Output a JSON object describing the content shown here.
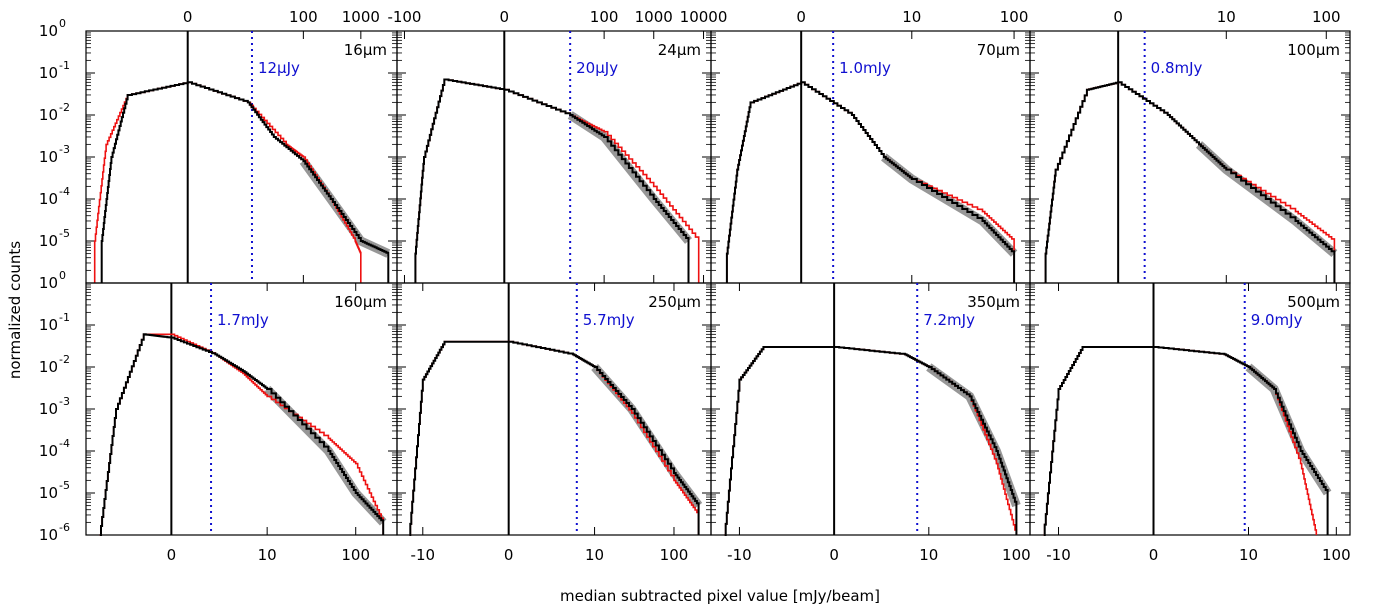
{
  "figure": {
    "xlabel": "median subtracted pixel value [mJy/beam]",
    "ylabel": "normalized counts",
    "colors": {
      "black_hist": "#000000",
      "red_hist": "#ee1111",
      "gray_hist": "#8c8c8c",
      "sensitivity_line": "#1010d0",
      "frame": "#000000"
    }
  },
  "y_tick_labels": {
    "top_row": [
      "10",
      "10",
      "10",
      "10",
      "10",
      "10"
    ],
    "top_row_exponents": [
      "0",
      "-1",
      "-2",
      "-3",
      "-4",
      "-5"
    ],
    "bottom_row": [
      "10",
      "10",
      "10",
      "10",
      "10",
      "10",
      "10"
    ],
    "bottom_row_exponents": [
      "0",
      "-1",
      "-2",
      "-3",
      "-4",
      "-5",
      "-6"
    ]
  },
  "x_tick_labels": {
    "top_row": [
      [
        "0",
        "100",
        "1000"
      ],
      [
        "-100",
        "0",
        "100",
        "1000",
        "10000"
      ],
      [
        "0",
        "10",
        "100"
      ],
      [
        "0",
        "10",
        "100"
      ]
    ],
    "bottom_row": [
      [
        "0",
        "10",
        "100"
      ],
      [
        "-10",
        "0",
        "10",
        "100"
      ],
      [
        "-10",
        "0",
        "10",
        "100"
      ],
      [
        "-10",
        "0",
        "10",
        "100"
      ]
    ]
  },
  "chart_data": [
    {
      "type": "line",
      "band": "16μm",
      "band_label": "16μm",
      "sensitivity_label": "12μJy",
      "row": 0,
      "col": 0,
      "xscale": "symlog",
      "yscale": "log",
      "ylim": [
        1e-06,
        1
      ],
      "x_ticks": [
        0,
        100,
        1000
      ],
      "sensitivity_x": 12,
      "series": [
        {
          "name": "",
          "color": "black",
          "x": [
            -30,
            -20,
            -10,
            0,
            10,
            30,
            100,
            300,
            1000,
            3000
          ],
          "y": [
            1e-05,
            0.001,
            0.03,
            0.06,
            0.02,
            0.003,
            0.0008,
            0.0001,
            1e-05,
            5e-06
          ]
        },
        {
          "name": "",
          "color": "red",
          "x": [
            -40,
            -25,
            -10,
            0,
            10,
            50,
            100,
            300,
            800,
            1000
          ],
          "y": [
            1e-05,
            0.002,
            0.03,
            0.06,
            0.02,
            0.002,
            0.001,
            0.0001,
            1e-05,
            5e-06
          ]
        }
      ]
    },
    {
      "type": "line",
      "band": "24μm",
      "band_label": "24μm",
      "sensitivity_label": "20μJy",
      "row": 0,
      "col": 1,
      "xscale": "symlog",
      "yscale": "log",
      "ylim": [
        1e-06,
        1
      ],
      "x_ticks": [
        -100,
        0,
        100,
        1000,
        10000
      ],
      "sensitivity_x": 20,
      "series": [
        {
          "name": "",
          "color": "black",
          "x": [
            -60,
            -40,
            -15,
            0,
            20,
            100,
            1000,
            5000
          ],
          "y": [
            5e-06,
            0.001,
            0.07,
            0.04,
            0.01,
            0.003,
            0.0001,
            1e-05
          ]
        },
        {
          "name": "",
          "color": "red",
          "x": [
            -60,
            -40,
            -15,
            0,
            20,
            100,
            1000,
            8000
          ],
          "y": [
            5e-06,
            0.001,
            0.07,
            0.04,
            0.01,
            0.004,
            0.0002,
            1e-05
          ]
        }
      ]
    },
    {
      "type": "line",
      "band": "70μm",
      "band_label": "70μm",
      "sensitivity_label": "1.0mJy",
      "row": 0,
      "col": 2,
      "xscale": "symlog",
      "yscale": "log",
      "ylim": [
        1e-06,
        1
      ],
      "x_ticks": [
        0,
        10,
        100
      ],
      "sensitivity_x": 1.0,
      "series": [
        {
          "name": "",
          "color": "black",
          "x": [
            -4,
            -3,
            -2,
            0,
            2,
            5,
            10,
            50,
            100
          ],
          "y": [
            5e-06,
            0.0005,
            0.02,
            0.06,
            0.01,
            0.001,
            0.0003,
            3e-05,
            5e-06
          ]
        },
        {
          "name": "",
          "color": "red",
          "x": [
            -4,
            -3,
            -2,
            0,
            2,
            5,
            10,
            50,
            100
          ],
          "y": [
            5e-06,
            0.0005,
            0.02,
            0.06,
            0.01,
            0.001,
            0.0003,
            5e-05,
            1e-05
          ]
        }
      ]
    },
    {
      "type": "line",
      "band": "100μm",
      "band_label": "100μm",
      "sensitivity_label": "0.8mJy",
      "row": 0,
      "col": 3,
      "xscale": "symlog",
      "yscale": "log",
      "ylim": [
        1e-06,
        1
      ],
      "x_ticks": [
        0,
        10,
        100
      ],
      "sensitivity_x": 0.8,
      "series": [
        {
          "name": "",
          "color": "black",
          "x": [
            -4,
            -3,
            -1,
            0,
            2,
            5,
            10,
            50,
            120
          ],
          "y": [
            5e-06,
            0.0005,
            0.04,
            0.06,
            0.01,
            0.002,
            0.0005,
            3e-05,
            5e-06
          ]
        },
        {
          "name": "",
          "color": "red",
          "x": [
            -4,
            -3,
            -1,
            0,
            2,
            5,
            10,
            50,
            120
          ],
          "y": [
            5e-06,
            0.0005,
            0.04,
            0.06,
            0.01,
            0.002,
            0.0005,
            5e-05,
            1e-05
          ]
        }
      ]
    },
    {
      "type": "line",
      "band": "160μm",
      "band_label": "160μm",
      "sensitivity_label": "1.7mJy",
      "row": 1,
      "col": 0,
      "xscale": "symlog",
      "yscale": "log",
      "ylim": [
        1e-06,
        1
      ],
      "x_ticks": [
        0,
        10,
        100
      ],
      "sensitivity_x": 1.7,
      "series": [
        {
          "name": "",
          "color": "black",
          "x": [
            -5,
            -3,
            -1,
            0,
            2,
            5,
            10,
            50,
            100,
            200
          ],
          "y": [
            1e-06,
            0.001,
            0.06,
            0.05,
            0.02,
            0.008,
            0.003,
            0.0001,
            1e-05,
            2e-06
          ]
        },
        {
          "name": "",
          "color": "red",
          "x": [
            -5,
            -3,
            -1,
            0,
            2,
            5,
            10,
            50,
            100,
            200
          ],
          "y": [
            1e-06,
            0.001,
            0.06,
            0.06,
            0.02,
            0.007,
            0.002,
            0.0002,
            5e-05,
            2e-06
          ]
        }
      ]
    },
    {
      "type": "line",
      "band": "250μm",
      "band_label": "250μm",
      "sensitivity_label": "5.7mJy",
      "row": 1,
      "col": 1,
      "xscale": "symlog",
      "yscale": "log",
      "ylim": [
        1e-06,
        1
      ],
      "x_ticks": [
        -10,
        0,
        10,
        100
      ],
      "sensitivity_x": 5.7,
      "series": [
        {
          "name": "",
          "color": "black",
          "x": [
            -15,
            -10,
            -5,
            0,
            5,
            10,
            30,
            100,
            200
          ],
          "y": [
            1e-06,
            0.005,
            0.04,
            0.04,
            0.02,
            0.01,
            0.001,
            3e-05,
            5e-06
          ]
        },
        {
          "name": "",
          "color": "red",
          "x": [
            -15,
            -10,
            -5,
            0,
            5,
            10,
            30,
            100,
            200
          ],
          "y": [
            1e-06,
            0.005,
            0.04,
            0.04,
            0.02,
            0.01,
            0.0008,
            2e-05,
            3e-06
          ]
        }
      ]
    },
    {
      "type": "line",
      "band": "350μm",
      "band_label": "350μm",
      "sensitivity_label": "7.2mJy",
      "row": 1,
      "col": 2,
      "xscale": "symlog",
      "yscale": "log",
      "ylim": [
        1e-06,
        1
      ],
      "x_ticks": [
        -10,
        0,
        10,
        100
      ],
      "sensitivity_x": 7.2,
      "series": [
        {
          "name": "",
          "color": "black",
          "x": [
            -15,
            -10,
            -5,
            0,
            5,
            10,
            30,
            60,
            100
          ],
          "y": [
            1e-06,
            0.005,
            0.03,
            0.03,
            0.02,
            0.01,
            0.002,
            0.0001,
            5e-06
          ]
        },
        {
          "name": "",
          "color": "red",
          "x": [
            -15,
            -10,
            -5,
            0,
            5,
            10,
            30,
            60,
            100
          ],
          "y": [
            1e-06,
            0.005,
            0.03,
            0.03,
            0.02,
            0.01,
            0.002,
            5e-05,
            1e-06
          ]
        }
      ]
    },
    {
      "type": "line",
      "band": "500μm",
      "band_label": "500μm",
      "sensitivity_label": "9.0mJy",
      "row": 1,
      "col": 3,
      "xscale": "symlog",
      "yscale": "log",
      "ylim": [
        1e-06,
        1
      ],
      "x_ticks": [
        -10,
        0,
        10,
        100
      ],
      "sensitivity_x": 9.0,
      "series": [
        {
          "name": "",
          "color": "black",
          "x": [
            -15,
            -10,
            -5,
            0,
            5,
            10,
            20,
            40,
            80
          ],
          "y": [
            1e-06,
            0.003,
            0.03,
            0.03,
            0.02,
            0.01,
            0.003,
            0.0001,
            1e-05
          ]
        },
        {
          "name": "",
          "color": "red",
          "x": [
            -15,
            -10,
            -5,
            0,
            5,
            10,
            20,
            40,
            60
          ],
          "y": [
            1e-06,
            0.003,
            0.03,
            0.03,
            0.02,
            0.01,
            0.003,
            5e-05,
            1e-06
          ]
        }
      ]
    }
  ]
}
